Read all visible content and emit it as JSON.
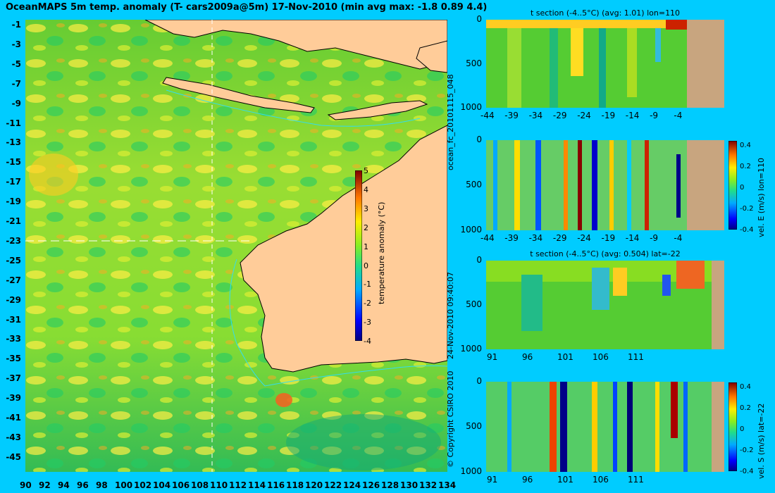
{
  "main_title": "OceanMAPS 5m temp. anomaly (T- cars2009a@5m) 17-Nov-2010 (min avg max: -1.8 0.89 4.4)",
  "map": {
    "lat_ticks": [
      "-1",
      "-3",
      "-5",
      "-7",
      "-9",
      "-11",
      "-13",
      "-15",
      "-17",
      "-19",
      "-21",
      "-23",
      "-25",
      "-27",
      "-29",
      "-31",
      "-33",
      "-35",
      "-37",
      "-39",
      "-41",
      "-43",
      "-45"
    ],
    "lon_ticks": [
      "90",
      "92",
      "94",
      "96",
      "98",
      "100",
      "102",
      "104",
      "106",
      "108",
      "110",
      "112",
      "114",
      "116",
      "118",
      "120",
      "122",
      "124",
      "126",
      "128",
      "130",
      "132",
      "134"
    ],
    "colorbar": {
      "label": "temperature anomaly (°C)",
      "ticks": [
        "5",
        "4",
        "3",
        "2",
        "1",
        "0",
        "-1",
        "-2",
        "-3",
        "-4"
      ],
      "range": [
        -4,
        5
      ]
    },
    "section_lines": {
      "lon": 110,
      "lat": -22
    }
  },
  "side_text": {
    "forecast_id": "ocean_fc_20101115_048",
    "timestamp": "24-Nov-2010 09:40:07",
    "copyright": "© Copyright CSIRO 2010"
  },
  "panels": [
    {
      "title": "t section (-4..5°C) (avg: 1.01) lon=110",
      "y_ticks": [
        "0",
        "500",
        "1000"
      ],
      "x_ticks": [
        "-44",
        "-39",
        "-34",
        "-29",
        "-24",
        "-19",
        "-14",
        "-9",
        "-4"
      ],
      "colorbar": null
    },
    {
      "title": "",
      "y_ticks": [
        "0",
        "500",
        "1000"
      ],
      "x_ticks": [
        "-44",
        "-39",
        "-34",
        "-29",
        "-24",
        "-19",
        "-14",
        "-9",
        "-4"
      ],
      "colorbar": {
        "label": "vel. E (m/s) lon=110",
        "ticks": [
          "0.4",
          "0.2",
          "0",
          "-0.2",
          "-0.4"
        ]
      }
    },
    {
      "title": "t section (-4..5°C) (avg: 0.504) lat=-22",
      "y_ticks": [
        "0",
        "500",
        "1000"
      ],
      "x_ticks": [
        "91",
        "96",
        "101",
        "106",
        "111"
      ],
      "colorbar": null
    },
    {
      "title": "",
      "y_ticks": [
        "0",
        "500",
        "1000"
      ],
      "x_ticks": [
        "91",
        "96",
        "101",
        "106",
        "111"
      ],
      "colorbar": {
        "label": "vel. S (m/s) lat=-22",
        "ticks": [
          "0.4",
          "0.2",
          "0",
          "-0.2",
          "-0.4"
        ]
      }
    }
  ],
  "colors": {
    "background": "#00ccff",
    "land": "#ffcc99",
    "section_land": "#c8a57f",
    "ocean_base": "#55cc33"
  }
}
